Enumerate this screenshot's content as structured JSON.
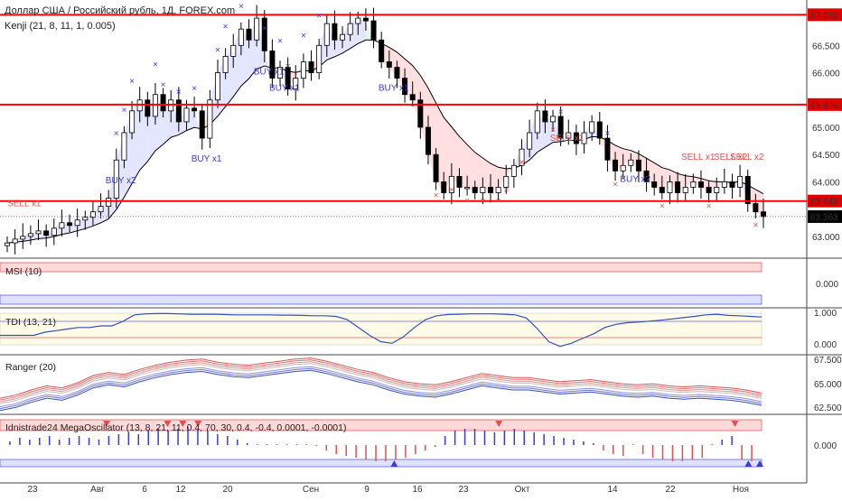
{
  "header": {
    "title": "Доллар США / Российский рубль, 1Д, FOREX.com",
    "indicator": "Kenji (21, 8, 11, 1, 0.005)"
  },
  "colors": {
    "up_candle": "#ffffff",
    "down_candle": "#000000",
    "level_line": "#ff0000",
    "price_tag": "#e00000",
    "current_tag": "#000000",
    "buy_signal": "#3a3adf",
    "sell_signal": "#e05050",
    "cloud_bull": "#dfe2ff",
    "cloud_bear": "#ffd9d9",
    "cloud_green": "#dff5df"
  },
  "chart_data": [
    {
      "type": "candlestick",
      "title": "Доллар США / Российский рубль, 1Д, FOREX.com",
      "x_labels": [
        "23",
        "Авг",
        "6",
        "12",
        "20",
        "Сен",
        "9",
        "16",
        "23",
        "Окт",
        "14",
        "22",
        "Ноя"
      ],
      "y_ticks": [
        "67.062",
        "66.500",
        "66.000",
        "65.416",
        "65.000",
        "64.500",
        "64.000",
        "63.648",
        "63.363",
        "63.000",
        "62.500"
      ],
      "horizontal_levels": [
        67.062,
        65.416,
        63.648
      ],
      "current_price": 63.363,
      "ylim": [
        62.7,
        67.2
      ],
      "closes": [
        62.88,
        62.95,
        63.0,
        63.05,
        63.1,
        63.02,
        63.15,
        63.25,
        63.2,
        63.3,
        63.35,
        63.45,
        63.55,
        63.7,
        64.4,
        64.9,
        65.3,
        65.5,
        65.2,
        65.6,
        65.3,
        65.5,
        65.1,
        65.35,
        65.3,
        64.8,
        65.5,
        66.0,
        66.3,
        66.5,
        66.8,
        66.6,
        67.0,
        66.4,
        65.9,
        66.1,
        65.7,
        65.9,
        66.2,
        66.0,
        66.5,
        66.9,
        66.6,
        66.7,
        66.9,
        67.0,
        66.95,
        66.6,
        66.2,
        66.1,
        65.9,
        65.6,
        65.5,
        65.0,
        64.5,
        64.0,
        63.8,
        64.1,
        63.9,
        63.9,
        63.8,
        63.9,
        63.8,
        63.9,
        64.1,
        64.3,
        64.6,
        64.9,
        65.3,
        65.1,
        65.2,
        64.8,
        64.9,
        64.7,
        64.9,
        65.1,
        64.8,
        64.4,
        64.2,
        64.3,
        64.4,
        64.2,
        64.0,
        63.9,
        63.8,
        64.0,
        63.8,
        63.9,
        64.0,
        63.9,
        63.8,
        63.9,
        64.0,
        63.9,
        64.1,
        63.6,
        63.45,
        63.363
      ],
      "series": [
        {
          "name": "Kenji",
          "params": "21, 8, 11, 1, 0.005"
        }
      ],
      "signals": [
        "SELL x1",
        "BUY x2",
        "BUY x1",
        "BUY x1",
        "BUY x1",
        "BUY x1",
        "SELL x1",
        "BUY x2",
        "SELL x1",
        "SELL x2",
        "SELL x2"
      ]
    },
    {
      "type": "line",
      "title": "MSI (10)",
      "y_ticks": [
        "0.000"
      ]
    },
    {
      "type": "line",
      "title": "TDI (13, 21)",
      "y_ticks": [
        "1.000",
        "0.000"
      ],
      "values": [
        0.3,
        0.3,
        0.3,
        0.3,
        0.4,
        0.45,
        0.5,
        0.55,
        0.55,
        0.6,
        0.6,
        0.75,
        0.95,
        0.98,
        0.99,
        0.99,
        0.98,
        0.97,
        0.97,
        0.97,
        0.96,
        0.95,
        0.95,
        0.95,
        0.95,
        0.94,
        0.94,
        0.93,
        0.92,
        0.92,
        0.9,
        0.8,
        0.55,
        0.3,
        0.1,
        0.05,
        0.25,
        0.55,
        0.8,
        0.92,
        0.96,
        0.97,
        0.98,
        0.98,
        0.98,
        0.97,
        0.95,
        0.85,
        0.5,
        0.1,
        -0.05,
        0.05,
        0.2,
        0.35,
        0.55,
        0.65,
        0.7,
        0.72,
        0.75,
        0.78,
        0.82,
        0.86,
        0.9,
        0.95,
        0.97,
        0.93,
        0.92,
        0.9,
        0.88
      ]
    },
    {
      "type": "line",
      "title": "Ranger (20)",
      "y_ticks": [
        "67.500",
        "65.000",
        "62.500"
      ],
      "values": [
        63.0,
        63.3,
        63.8,
        64.2,
        64.0,
        64.5,
        65.2,
        65.5,
        65.3,
        65.8,
        66.2,
        66.5,
        66.7,
        66.8,
        66.5,
        66.3,
        66.2,
        66.4,
        66.6,
        66.8,
        66.9,
        66.6,
        66.2,
        65.8,
        65.5,
        65.0,
        64.6,
        64.4,
        64.3,
        64.6,
        65.0,
        65.4,
        65.2,
        65.0,
        65.0,
        64.8,
        64.6,
        64.7,
        64.8,
        64.6,
        64.4,
        64.3,
        64.4,
        64.2,
        64.1,
        64.2,
        64.1,
        64.0,
        63.8,
        63.5
      ]
    },
    {
      "type": "bar",
      "title": "Idnistrade24 MegaOscillator (13, 8, 21, 11, 0.4, 70, 30, 0.4, -0.4, 0.0001, -0.0001)",
      "y_ticks": [
        "0.000"
      ],
      "values": [
        0.2,
        0.4,
        0.3,
        0.4,
        0.5,
        0.3,
        0.4,
        0.5,
        0.4,
        0.3,
        0.5,
        0.6,
        0.7,
        0.6,
        0.8,
        0.9,
        0.8,
        0.9,
        1.0,
        0.9,
        0.8,
        0.6,
        0.5,
        0.3,
        0.1,
        0.05,
        0.05,
        0.05,
        0.05,
        0.05,
        0.05,
        -0.05,
        -0.3,
        -0.5,
        -0.6,
        -0.7,
        -0.8,
        -0.9,
        -0.9,
        -0.8,
        -0.7,
        -0.5,
        -0.3,
        -0.1,
        0.5,
        0.8,
        0.9,
        0.9,
        0.8,
        0.7,
        0.8,
        0.9,
        0.8,
        0.7,
        0.6,
        0.5,
        0.4,
        0.3,
        0.2,
        0.1,
        -0.3,
        -0.5,
        -0.6,
        0.05,
        -0.5,
        -0.7,
        -0.8,
        -0.9,
        -0.9,
        -0.8,
        -0.7,
        0.05,
        0.3,
        0.5,
        -0.8,
        -0.9
      ]
    }
  ]
}
